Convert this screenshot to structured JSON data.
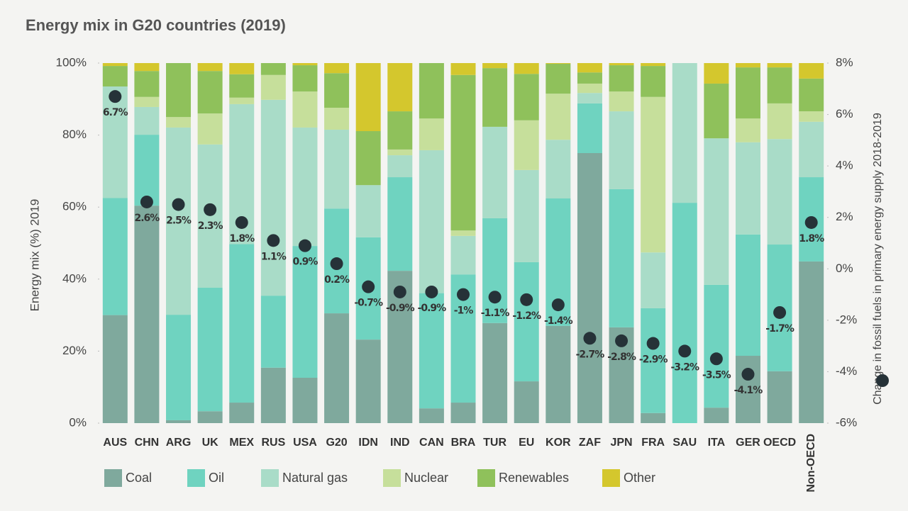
{
  "chart_data": {
    "type": "stacked_bar_dot",
    "title": "Energy mix in G20 countries (2019)",
    "y_label": "Energy mix (%) 2019",
    "y2_label": "Change in fossil fuels in primary energy supply 2018-2019",
    "categories": [
      "AUS",
      "CHN",
      "ARG",
      "UK",
      "MEX",
      "RUS",
      "USA",
      "G20",
      "IDN",
      "IND",
      "CAN",
      "BRA",
      "TUR",
      "EU",
      "KOR",
      "ZAF",
      "JPN",
      "FRA",
      "SAU",
      "ITA",
      "GER",
      "OECD",
      "Non-OECD"
    ],
    "series": [
      {
        "name": "Coal",
        "color": "#7fa99d",
        "values": [
          30,
          60.4,
          0.8,
          3.3,
          5.7,
          15.4,
          12.6,
          30.5,
          23.2,
          42.3,
          4.1,
          5.7,
          27.8,
          11.6,
          27,
          75,
          26.6,
          2.8,
          0,
          4.3,
          18.7,
          14.4,
          44.9
        ]
      },
      {
        "name": "Oil",
        "color": "#6fd3c0",
        "values": [
          32.5,
          19.7,
          29.3,
          34.3,
          44,
          20,
          36.6,
          29.1,
          28.4,
          26,
          32,
          35.6,
          29.1,
          33.1,
          35.4,
          13.8,
          38.4,
          29.1,
          61.2,
          34.1,
          33.7,
          35.2,
          23.4
        ]
      },
      {
        "name": "Natural gas",
        "color": "#a9dcc8",
        "values": [
          31,
          7.7,
          52,
          39.8,
          38.9,
          54.4,
          32.9,
          21.9,
          14.5,
          6.1,
          39.7,
          10.7,
          25.4,
          25.6,
          16.3,
          2.9,
          21.6,
          15.5,
          38.8,
          40.7,
          25.6,
          29.3,
          15.4
        ]
      },
      {
        "name": "Nuclear",
        "color": "#c6df9b",
        "values": [
          0,
          2.8,
          2.9,
          8.6,
          1.8,
          6.9,
          10,
          6.1,
          0,
          1.6,
          8.8,
          1.5,
          0,
          13.8,
          12.8,
          2.6,
          5.5,
          43.2,
          0,
          0,
          6.6,
          9.9,
          2.9
        ]
      },
      {
        "name": "Renewables",
        "color": "#8fc15b",
        "values": [
          5.7,
          7.2,
          15,
          11.8,
          6.5,
          3.3,
          7.3,
          9.6,
          15,
          10.6,
          15.4,
          43.2,
          16.3,
          12.9,
          8.3,
          3.1,
          7.3,
          8.6,
          0,
          15.2,
          14.2,
          10,
          9.1
        ]
      },
      {
        "name": "Other",
        "color": "#d4c72d",
        "values": [
          0.8,
          2.2,
          0,
          2.2,
          3.1,
          0,
          0.6,
          2.8,
          18.9,
          13.4,
          0,
          3.3,
          1.4,
          3,
          0.2,
          2.6,
          0.6,
          0.8,
          0,
          5.7,
          1.2,
          1.2,
          4.3
        ]
      }
    ],
    "dots": {
      "color": "#263238",
      "axis": "y2",
      "values": [
        6.7,
        2.6,
        2.5,
        2.3,
        1.8,
        1.1,
        0.9,
        0.2,
        -0.7,
        -0.9,
        -0.9,
        -1,
        -1.1,
        -1.2,
        -1.4,
        -2.7,
        -2.8,
        -2.9,
        -3.2,
        -3.5,
        -4.1,
        -1.7,
        1.8
      ],
      "value_labels": [
        "6.7%",
        "2.6%",
        "2.5%",
        "2.3%",
        "1.8%",
        "1.1%",
        "0.9%",
        "0.2%",
        "-0.7%",
        "-0.9%",
        "-0.9%",
        "-1%",
        "-1.1%",
        "-1.2%",
        "-1.4%",
        "-2.7%",
        "-2.8%",
        "-2.9%",
        "-3.2%",
        "-3.5%",
        "-4.1%",
        "-1.7%",
        "1.8%"
      ]
    },
    "ylim": [
      0,
      100
    ],
    "yticks": [
      {
        "value": 0,
        "label": "0%"
      },
      {
        "value": 20,
        "label": "20%"
      },
      {
        "value": 40,
        "label": "40%"
      },
      {
        "value": 60,
        "label": "60%"
      },
      {
        "value": 80,
        "label": "80%"
      },
      {
        "value": 100,
        "label": "100%"
      }
    ],
    "y2lim": [
      -6,
      8
    ],
    "y2ticks": [
      {
        "value": -6,
        "label": "-6%"
      },
      {
        "value": -4,
        "label": "-4%"
      },
      {
        "value": -2,
        "label": "-2%"
      },
      {
        "value": 0,
        "label": "0%"
      },
      {
        "value": 2,
        "label": "2%"
      },
      {
        "value": 4,
        "label": "4%"
      },
      {
        "value": 6,
        "label": "6%"
      },
      {
        "value": 8,
        "label": "8%"
      }
    ]
  }
}
